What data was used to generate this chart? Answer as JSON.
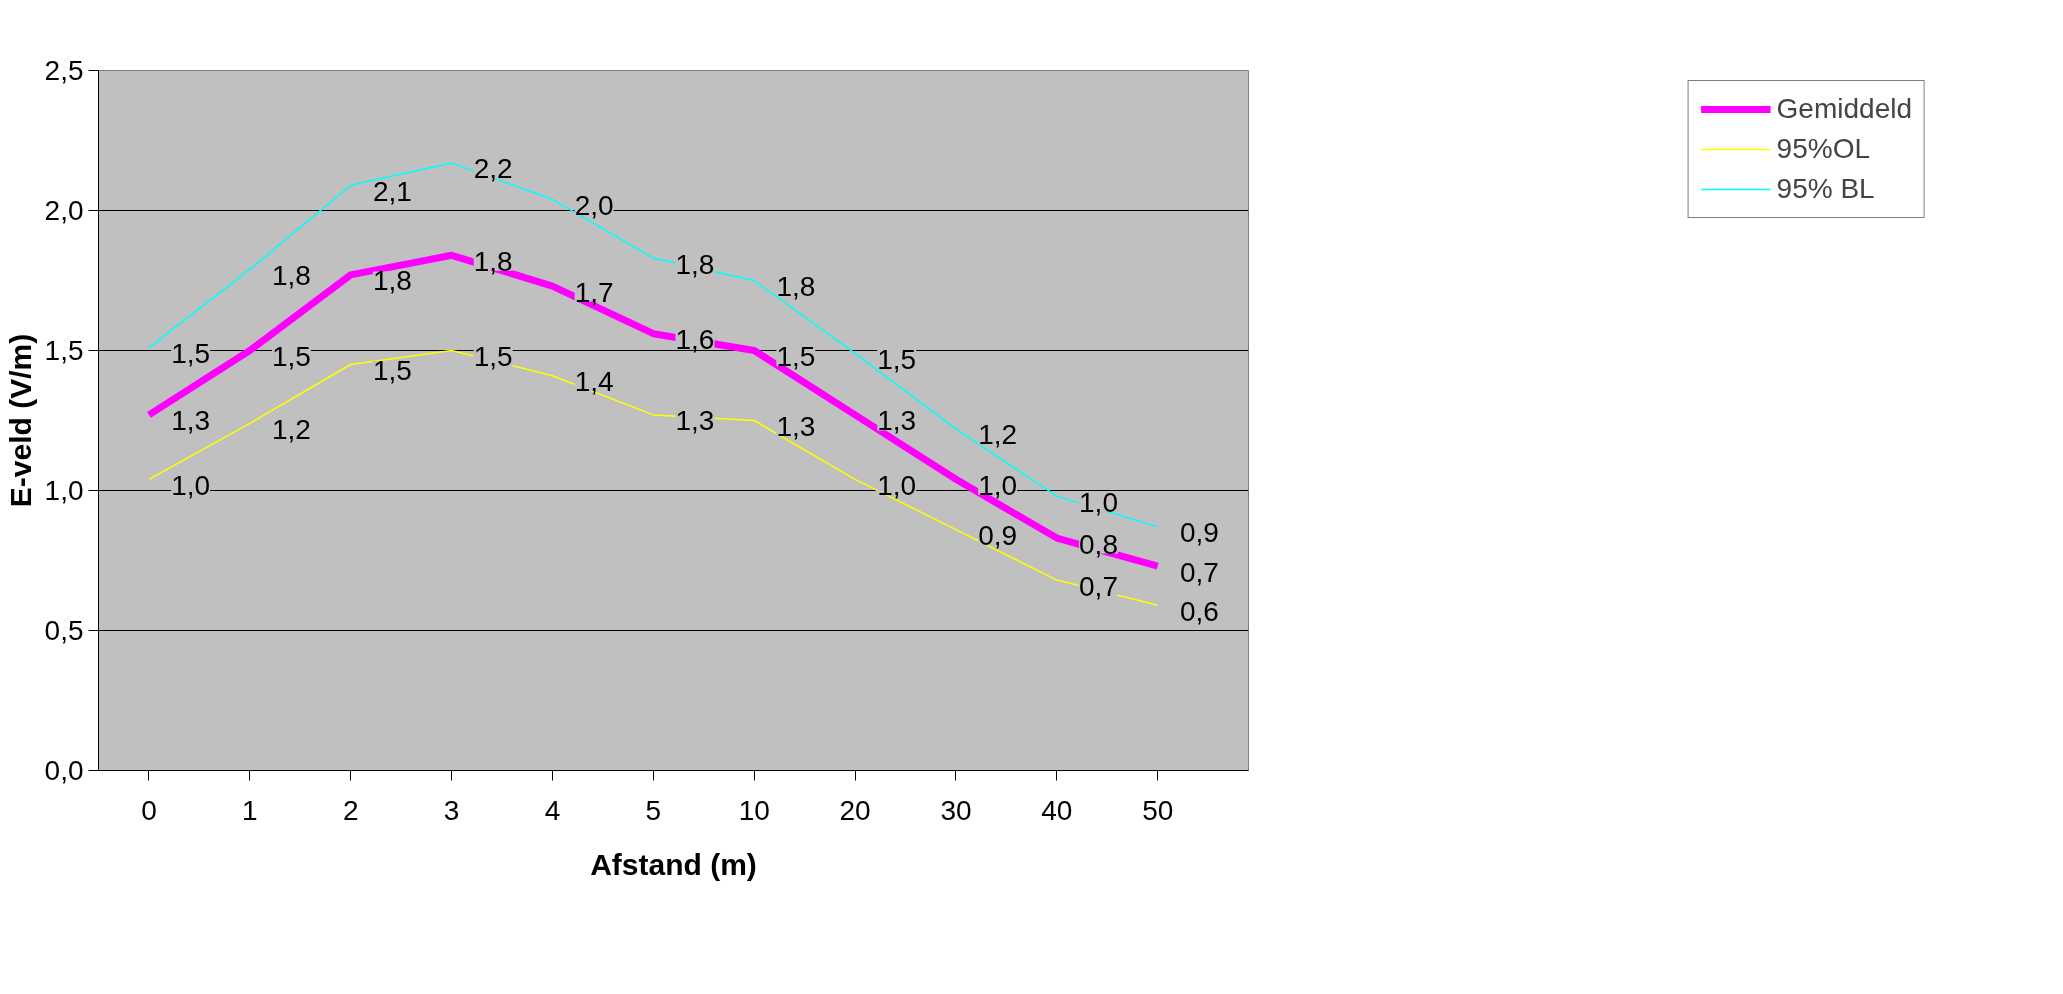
{
  "chart_data": {
    "type": "line",
    "xlabel": "Afstand (m)",
    "ylabel": "E-veld (V/m)",
    "categories": [
      "0",
      "1",
      "2",
      "3",
      "4",
      "5",
      "10",
      "20",
      "30",
      "40",
      "50"
    ],
    "ylim": [
      0,
      2.5
    ],
    "yticks": [
      {
        "value": 0,
        "label": "0,0"
      },
      {
        "value": 0.5,
        "label": "0,5"
      },
      {
        "value": 1.0,
        "label": "1,0"
      },
      {
        "value": 1.5,
        "label": "1,5"
      },
      {
        "value": 2.0,
        "label": "2,0"
      },
      {
        "value": 2.5,
        "label": "2,5"
      }
    ],
    "grid": "y",
    "legend": "right",
    "marker": "none",
    "line_style": "solid",
    "series": [
      {
        "name": "Gemiddeld",
        "color": "#ff00ff",
        "values": [
          1.27,
          1.5,
          1.77,
          1.84,
          1.73,
          1.56,
          1.5,
          1.27,
          1.04,
          0.83,
          0.73
        ],
        "value_labels": [
          "1,3",
          "1,5",
          "1,8",
          "1,8",
          "1,7",
          "1,6",
          "1,5",
          "1,3",
          "1,0",
          "0,8",
          "0,7"
        ]
      },
      {
        "name": "95%OL",
        "color": "#ffff00",
        "values": [
          1.04,
          1.24,
          1.45,
          1.5,
          1.41,
          1.27,
          1.25,
          1.04,
          0.86,
          0.68,
          0.59
        ],
        "value_labels": [
          "1,0",
          "1,2",
          "1,5",
          "1,5",
          "1,4",
          "1,3",
          "1,3",
          "1,0",
          "0,9",
          "0,7",
          "0,6"
        ]
      },
      {
        "name": "95% BL",
        "color": "#00ffff",
        "values": [
          1.51,
          1.79,
          2.09,
          2.17,
          2.04,
          1.83,
          1.75,
          1.49,
          1.22,
          0.98,
          0.87
        ],
        "value_labels": [
          "1,5",
          "1,8",
          "2,1",
          "2,2",
          "2,0",
          "1,8",
          "1,8",
          "1,5",
          "1,2",
          "1,0",
          "0,9"
        ]
      }
    ]
  }
}
